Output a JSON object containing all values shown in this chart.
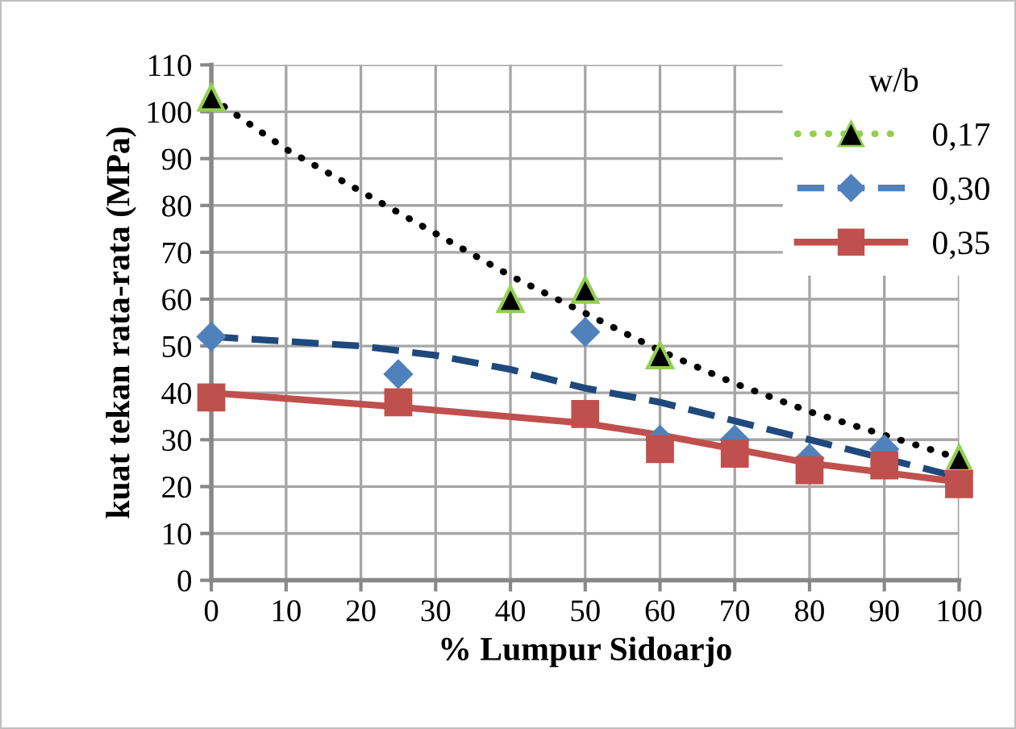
{
  "chart_data": {
    "type": "scatter",
    "xlabel": "% Lumpur Sidoarjo",
    "ylabel": "kuat tekan rata-rata (MPa)",
    "legend_title": "w/b",
    "xlim": [
      0,
      100
    ],
    "ylim": [
      0,
      110
    ],
    "xticks": [
      0,
      10,
      20,
      30,
      40,
      50,
      60,
      70,
      80,
      90,
      100
    ],
    "yticks": [
      0,
      10,
      20,
      30,
      40,
      50,
      60,
      70,
      80,
      90,
      100,
      110
    ],
    "grid": true,
    "legend": "top right",
    "series": [
      {
        "name": "0,17",
        "marker": "triangle",
        "line_style": "dotted",
        "color": "#92d050",
        "x": [
          0,
          40,
          50,
          60,
          100
        ],
        "values": [
          103,
          60,
          62,
          48,
          26
        ]
      },
      {
        "name": "0,30",
        "marker": "diamond",
        "line_style": "dashed",
        "color": "#4f81bd",
        "x": [
          0,
          25,
          50,
          60,
          70,
          80,
          90
        ],
        "values": [
          52,
          44,
          53,
          30,
          30,
          26,
          28
        ]
      },
      {
        "name": "0,35",
        "marker": "square",
        "line_style": "solid",
        "color": "#c0504d",
        "x": [
          0,
          25,
          50,
          60,
          70,
          80,
          90,
          100
        ],
        "values": [
          39,
          38,
          35.5,
          28,
          27,
          23.5,
          24.5,
          20.5
        ]
      },
      {
        "type": "line",
        "line_style": "dotted",
        "color": "#000000",
        "x": [
          0,
          10,
          20,
          30,
          40,
          50,
          60,
          70,
          80,
          90,
          100
        ],
        "values": [
          103,
          92,
          83,
          74,
          65,
          57,
          49,
          42,
          36,
          31,
          26
        ]
      },
      {
        "type": "line",
        "line_style": "dashed",
        "color": "#1f497d",
        "x": [
          0,
          20,
          30,
          40,
          50,
          60,
          70,
          80,
          90,
          100
        ],
        "values": [
          52,
          50,
          48,
          45,
          41,
          38,
          34,
          30,
          26,
          22
        ]
      },
      {
        "type": "line",
        "line_style": "solid",
        "color": "#c0504d",
        "x": [
          0,
          25,
          50,
          60,
          70,
          80,
          100
        ],
        "values": [
          40,
          37,
          33.5,
          31,
          28,
          25,
          21
        ]
      }
    ]
  }
}
